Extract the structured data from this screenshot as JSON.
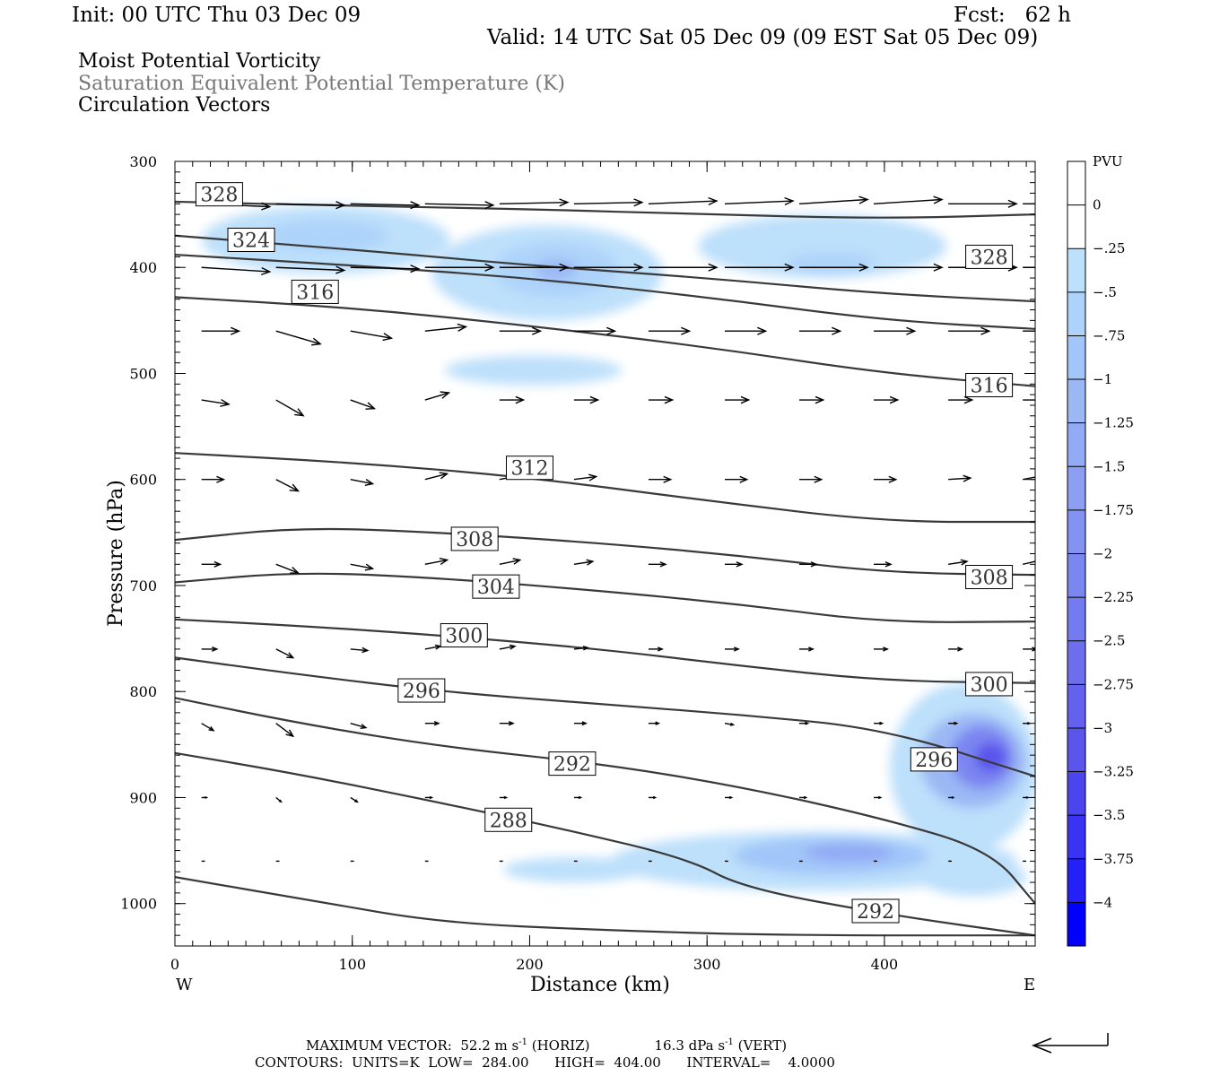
{
  "header": {
    "init": "Init: 00 UTC Thu 03 Dec 09",
    "fcst": "Fcst:   62 h",
    "valid": "Valid: 14 UTC Sat 05 Dec 09 (09 EST Sat 05 Dec 09)"
  },
  "titles": {
    "line1": "Moist Potential Vorticity",
    "line2": "Saturation Equivalent Potential Temperature (K)",
    "line3": "Circulation Vectors"
  },
  "footer": {
    "max_vector_prefix": "MAXIMUM VECTOR:  52.2 m s",
    "horiz_suffix": " (HORIZ)",
    "vert_prefix": "16.3 dPa s",
    "vert_suffix": " (VERT)",
    "exp": "-1",
    "contours": "CONTOURS:  UNITS=K  LOW=  284.00      HIGH=  404.00      INTERVAL=    4.0000"
  },
  "colors": {
    "contour": "#3a3a3a",
    "pv_light": "#bde0fb",
    "pv_mid": "#9bb8f5",
    "pv_dark": "#6f79ee",
    "pv_max": "#0000ff"
  },
  "chart_data": {
    "type": "contour",
    "xlabel": "Distance (km)",
    "ylabel": "Pressure (hPa)",
    "xlim": [
      0,
      485
    ],
    "ylim": [
      1040,
      300
    ],
    "y_scale": "linear",
    "xticks": [
      0,
      100,
      200,
      300,
      400
    ],
    "yticks": [
      300,
      400,
      500,
      600,
      700,
      800,
      900,
      1000
    ],
    "x_end_labels": [
      "W",
      "E"
    ],
    "colorbar": {
      "units": "PVU",
      "levels": [
        "0",
        "-.25",
        "-.5",
        "-.75",
        "-1",
        "-1.25",
        "-1.5",
        "-1.75",
        "-2",
        "-2.25",
        "-2.5",
        "-2.75",
        "-3",
        "-3.25",
        "-3.5",
        "-3.75",
        "-4"
      ],
      "colors": [
        "#ffffff",
        "#bde0fb",
        "#aed3fa",
        "#a2c6f9",
        "#9bb8f5",
        "#93abf4",
        "#8c9ff3",
        "#8492f2",
        "#7c86f1",
        "#747aef",
        "#6c6eee",
        "#6462ed",
        "#5c55ec",
        "#4c45ef",
        "#3a33f3",
        "#2620f8",
        "#0000ff"
      ]
    },
    "contour_labels": [
      {
        "text": "328",
        "x": 25,
        "p": 331
      },
      {
        "text": "324",
        "x": 43,
        "p": 374
      },
      {
        "text": "316",
        "x": 79,
        "p": 423
      },
      {
        "text": "328",
        "x": 459,
        "p": 390
      },
      {
        "text": "316",
        "x": 459,
        "p": 511
      },
      {
        "text": "312",
        "x": 200,
        "p": 589
      },
      {
        "text": "308",
        "x": 169,
        "p": 656
      },
      {
        "text": "304",
        "x": 181,
        "p": 701
      },
      {
        "text": "300",
        "x": 163,
        "p": 747
      },
      {
        "text": "296",
        "x": 139,
        "p": 799
      },
      {
        "text": "308",
        "x": 459,
        "p": 692
      },
      {
        "text": "300",
        "x": 459,
        "p": 793
      },
      {
        "text": "292",
        "x": 224,
        "p": 868
      },
      {
        "text": "296",
        "x": 428,
        "p": 864
      },
      {
        "text": "288",
        "x": 188,
        "p": 921
      },
      {
        "text": "292",
        "x": 395,
        "p": 1007
      }
    ],
    "theta_contours": [
      {
        "value": 328,
        "points": [
          [
            0,
            338
          ],
          [
            100,
            342
          ],
          [
            200,
            345
          ],
          [
            300,
            350
          ],
          [
            400,
            354
          ],
          [
            485,
            350
          ]
        ]
      },
      {
        "value": 324,
        "points": [
          [
            0,
            370
          ],
          [
            60,
            378
          ],
          [
            120,
            386
          ],
          [
            200,
            398
          ],
          [
            300,
            410
          ],
          [
            400,
            425
          ],
          [
            485,
            432
          ]
        ]
      },
      {
        "value": 320,
        "points": [
          [
            0,
            388
          ],
          [
            100,
            398
          ],
          [
            200,
            410
          ],
          [
            300,
            428
          ],
          [
            400,
            450
          ],
          [
            485,
            458
          ]
        ]
      },
      {
        "value": 316,
        "points": [
          [
            0,
            428
          ],
          [
            100,
            438
          ],
          [
            200,
            455
          ],
          [
            300,
            475
          ],
          [
            400,
            500
          ],
          [
            485,
            512
          ]
        ]
      },
      {
        "value": 312,
        "points": [
          [
            0,
            575
          ],
          [
            100,
            584
          ],
          [
            200,
            598
          ],
          [
            300,
            620
          ],
          [
            400,
            640
          ],
          [
            485,
            640
          ]
        ]
      },
      {
        "value": 308,
        "points": [
          [
            0,
            657
          ],
          [
            70,
            645
          ],
          [
            150,
            650
          ],
          [
            240,
            660
          ],
          [
            320,
            672
          ],
          [
            400,
            688
          ],
          [
            485,
            690
          ]
        ]
      },
      {
        "value": 304,
        "points": [
          [
            0,
            697
          ],
          [
            70,
            687
          ],
          [
            150,
            693
          ],
          [
            240,
            705
          ],
          [
            320,
            718
          ],
          [
            400,
            735
          ],
          [
            485,
            734
          ]
        ]
      },
      {
        "value": 300,
        "points": [
          [
            0,
            732
          ],
          [
            70,
            738
          ],
          [
            150,
            747
          ],
          [
            240,
            760
          ],
          [
            320,
            776
          ],
          [
            400,
            790
          ],
          [
            485,
            792
          ]
        ]
      },
      {
        "value": 296,
        "points": [
          [
            0,
            768
          ],
          [
            70,
            784
          ],
          [
            150,
            800
          ],
          [
            240,
            812
          ],
          [
            320,
            822
          ],
          [
            400,
            835
          ],
          [
            485,
            880
          ]
        ]
      },
      {
        "value": 292,
        "points": [
          [
            0,
            806
          ],
          [
            70,
            830
          ],
          [
            150,
            852
          ],
          [
            240,
            868
          ],
          [
            320,
            890
          ],
          [
            400,
            920
          ],
          [
            460,
            950
          ],
          [
            485,
            1000
          ]
        ]
      },
      {
        "value": 288,
        "points": [
          [
            0,
            858
          ],
          [
            70,
            878
          ],
          [
            150,
            905
          ],
          [
            220,
            930
          ],
          [
            290,
            958
          ],
          [
            320,
            985
          ],
          [
            400,
            1010
          ],
          [
            485,
            1030
          ]
        ]
      },
      {
        "value": 284,
        "points": [
          [
            0,
            975
          ],
          [
            80,
            998
          ],
          [
            150,
            1018
          ],
          [
            240,
            1025
          ],
          [
            340,
            1030
          ],
          [
            485,
            1030
          ]
        ]
      }
    ],
    "pv_regions": [
      {
        "level": "-.25",
        "cx": 85,
        "cp": 374,
        "rx": 70,
        "rp": 32
      },
      {
        "level": "-.5",
        "cx": 85,
        "cp": 370,
        "rx": 35,
        "rp": 15
      },
      {
        "level": "-.25",
        "cx": 210,
        "cp": 405,
        "rx": 65,
        "rp": 45
      },
      {
        "level": "-.5",
        "cx": 215,
        "cp": 402,
        "rx": 35,
        "rp": 26
      },
      {
        "level": "-1",
        "cx": 215,
        "cp": 402,
        "rx": 12,
        "rp": 10
      },
      {
        "level": "-.25",
        "cx": 365,
        "cp": 380,
        "rx": 70,
        "rp": 30
      },
      {
        "level": "-.5",
        "cx": 370,
        "cp": 396,
        "rx": 25,
        "rp": 10
      },
      {
        "level": "-.25",
        "cx": 202,
        "cp": 497,
        "rx": 50,
        "rp": 14
      },
      {
        "level": "-.25",
        "cx": 445,
        "cp": 872,
        "rx": 42,
        "rp": 80
      },
      {
        "level": "-1",
        "cx": 450,
        "cp": 865,
        "rx": 30,
        "rp": 45
      },
      {
        "level": "-2",
        "cx": 455,
        "cp": 862,
        "rx": 18,
        "rp": 30
      },
      {
        "level": "-3",
        "cx": 460,
        "cp": 862,
        "rx": 9,
        "rp": 14
      },
      {
        "level": "-.25",
        "cx": 360,
        "cp": 960,
        "rx": 115,
        "rp": 28
      },
      {
        "level": "-.75",
        "cx": 370,
        "cp": 955,
        "rx": 55,
        "rp": 18
      },
      {
        "level": "-1.25",
        "cx": 380,
        "cp": 952,
        "rx": 25,
        "rp": 9
      },
      {
        "level": "-.25",
        "cx": 225,
        "cp": 968,
        "rx": 40,
        "rp": 12
      },
      {
        "level": "-.25",
        "cx": 450,
        "cp": 975,
        "rx": 30,
        "rp": 18
      }
    ],
    "vectors": {
      "x": [
        15,
        57,
        99,
        141,
        183,
        225,
        267,
        310,
        352,
        394,
        436,
        478
      ],
      "rows": [
        {
          "p": 340,
          "u": [
            40,
            40,
            40,
            40,
            40,
            40,
            40,
            40,
            40,
            40,
            40,
            40
          ],
          "w": [
            0.2,
            0.1,
            0.1,
            0.1,
            -0.1,
            -0.1,
            -0.2,
            -0.2,
            -0.3,
            -0.3,
            0,
            0
          ]
        },
        {
          "p": 400,
          "u": [
            40,
            40,
            40,
            40,
            40,
            40,
            40,
            40,
            40,
            40,
            40,
            40
          ],
          "w": [
            0.3,
            0.2,
            0.1,
            0,
            0,
            0,
            0,
            0,
            0,
            0,
            0,
            0
          ]
        },
        {
          "p": 460,
          "u": [
            22,
            26,
            24,
            24,
            24,
            24,
            24,
            24,
            24,
            24,
            24,
            24
          ],
          "w": [
            0,
            0.9,
            0.5,
            -0.3,
            0,
            0,
            0,
            0,
            0,
            0,
            0,
            0
          ]
        },
        {
          "p": 525,
          "u": [
            16,
            16,
            14,
            14,
            14,
            14,
            14,
            14,
            14,
            14,
            14,
            14
          ],
          "w": [
            0.3,
            1.1,
            0.6,
            -0.5,
            0,
            0,
            0,
            0,
            0,
            0,
            0,
            0
          ]
        },
        {
          "p": 600,
          "u": [
            13,
            13,
            13,
            13,
            13,
            13,
            13,
            13,
            13,
            13,
            13,
            13
          ],
          "w": [
            0,
            0.8,
            0.3,
            -0.4,
            -0.3,
            -0.2,
            0,
            0,
            0,
            0,
            -0.1,
            -0.3
          ]
        },
        {
          "p": 680,
          "u": [
            11,
            13,
            13,
            13,
            12,
            11,
            10,
            10,
            10,
            10,
            11,
            11
          ],
          "w": [
            0,
            0.6,
            0.3,
            -0.3,
            -0.3,
            -0.2,
            0,
            0,
            0,
            0,
            -0.2,
            -0.3
          ]
        },
        {
          "p": 760,
          "u": [
            9,
            10,
            10,
            9,
            9,
            8,
            8,
            8,
            8,
            8,
            8,
            8
          ],
          "w": [
            0,
            0.6,
            0.1,
            -0.2,
            -0.2,
            -0.1,
            0,
            0,
            0,
            0,
            0,
            0
          ]
        },
        {
          "p": 830,
          "u": [
            7,
            10,
            9,
            8,
            8,
            7,
            6,
            5,
            5,
            5,
            5,
            4
          ],
          "w": [
            0.5,
            0.9,
            0.3,
            0,
            0,
            0,
            0,
            0.1,
            0,
            0,
            0,
            0
          ]
        },
        {
          "p": 900,
          "u": [
            3,
            3,
            4,
            4,
            4,
            4,
            4,
            4,
            4,
            4,
            3,
            3
          ],
          "w": [
            0,
            0.3,
            0.3,
            0,
            0,
            0,
            0,
            0,
            0,
            0,
            0,
            0
          ]
        },
        {
          "p": 960,
          "u": [
            2,
            2,
            2,
            2,
            2,
            2,
            2,
            2,
            2,
            2,
            2,
            2
          ],
          "w": [
            0,
            0,
            0,
            0,
            0,
            0,
            0,
            0,
            0,
            0,
            0,
            0
          ]
        }
      ]
    }
  }
}
